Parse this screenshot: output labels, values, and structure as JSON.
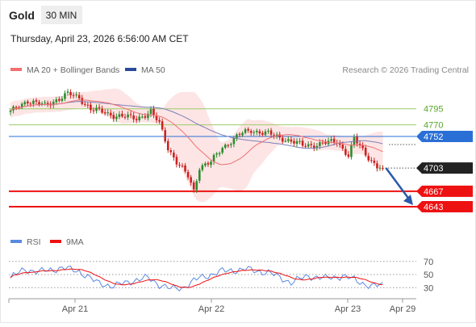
{
  "header": {
    "instrument": "Gold",
    "timeframe": "30 MIN",
    "datetime": "Thursday, April 23, 2026 6:56:00 AM CET"
  },
  "legend": {
    "ma20_label": "MA 20 + Bollinger Bands",
    "ma50_label": "MA 50",
    "rsi_label": "RSI",
    "ma9_label": "9MA",
    "credit": "Research © 2026 Trading Central"
  },
  "colors": {
    "candle_up": "#2e8b2e",
    "candle_down": "#cc2222",
    "ma20": "#f07070",
    "bollinger_fill": "#fde0e0",
    "ma50": "#7b7fb8",
    "resistance": "#9ccc6a",
    "resistance_text": "#5aa52a",
    "pivot": "#2a6fd6",
    "current_price": "#222222",
    "support": "#ee1111",
    "forecast_arrow": "#2a5aa8",
    "rsi": "#5a8ae0",
    "rsi_ma": "#ee1111"
  },
  "chart_data": [
    {
      "type": "candlestick",
      "title": "Gold",
      "interval": "30 MIN",
      "x_labels": [
        "Apr 21",
        "Apr 22",
        "Apr 23",
        "Apr 29"
      ],
      "ylim": [
        4633,
        4826
      ],
      "grid": false,
      "legend": "top-left",
      "price_levels": [
        {
          "value": 4795,
          "label": "4795",
          "kind": "resistance"
        },
        {
          "value": 4770,
          "label": "4770",
          "kind": "resistance"
        },
        {
          "value": 4752,
          "label": "4752",
          "kind": "pivot"
        },
        {
          "value": 4703,
          "label": "4703",
          "kind": "current"
        },
        {
          "value": 4667,
          "label": "4667",
          "kind": "support"
        },
        {
          "value": 4643,
          "label": "4643",
          "kind": "support"
        }
      ],
      "series": [
        {
          "name": "MA 20 + Bollinger Bands",
          "kind": "ma20_bollinger"
        },
        {
          "name": "MA 50",
          "kind": "ma50"
        }
      ],
      "anchors": [
        [
          0,
          4790
        ],
        [
          6,
          4808
        ],
        [
          12,
          4800
        ],
        [
          20,
          4818
        ],
        [
          24,
          4812
        ],
        [
          28,
          4795
        ],
        [
          36,
          4785
        ],
        [
          44,
          4780
        ],
        [
          49,
          4790
        ],
        [
          52,
          4772
        ],
        [
          55,
          4735
        ],
        [
          58,
          4712
        ],
        [
          62,
          4690
        ],
        [
          64,
          4668
        ],
        [
          66,
          4705
        ],
        [
          70,
          4712
        ],
        [
          74,
          4735
        ],
        [
          80,
          4755
        ],
        [
          84,
          4762
        ],
        [
          90,
          4756
        ],
        [
          96,
          4748
        ],
        [
          102,
          4738
        ],
        [
          108,
          4740
        ],
        [
          114,
          4745
        ],
        [
          118,
          4722
        ],
        [
          120,
          4748
        ],
        [
          124,
          4725
        ],
        [
          128,
          4705
        ],
        [
          130,
          4703
        ]
      ],
      "forecast": {
        "from": 4703,
        "to": 4643
      }
    },
    {
      "type": "line",
      "title": "RSI",
      "ylim": [
        18,
        82
      ],
      "y_ticks": [
        70,
        50,
        30
      ],
      "reference_lines": [
        70,
        50,
        30
      ],
      "series": [
        {
          "name": "RSI",
          "kind": "rsi"
        },
        {
          "name": "9MA",
          "kind": "rsi_ma"
        }
      ],
      "anchors": [
        [
          0,
          45
        ],
        [
          5,
          58
        ],
        [
          10,
          54
        ],
        [
          18,
          60
        ],
        [
          24,
          55
        ],
        [
          30,
          38
        ],
        [
          36,
          32
        ],
        [
          42,
          40
        ],
        [
          48,
          45
        ],
        [
          52,
          35
        ],
        [
          56,
          28
        ],
        [
          60,
          30
        ],
        [
          66,
          45
        ],
        [
          74,
          55
        ],
        [
          82,
          58
        ],
        [
          90,
          53
        ],
        [
          98,
          38
        ],
        [
          104,
          48
        ],
        [
          110,
          44
        ],
        [
          116,
          48
        ],
        [
          120,
          42
        ],
        [
          126,
          32
        ],
        [
          130,
          34
        ]
      ]
    }
  ]
}
